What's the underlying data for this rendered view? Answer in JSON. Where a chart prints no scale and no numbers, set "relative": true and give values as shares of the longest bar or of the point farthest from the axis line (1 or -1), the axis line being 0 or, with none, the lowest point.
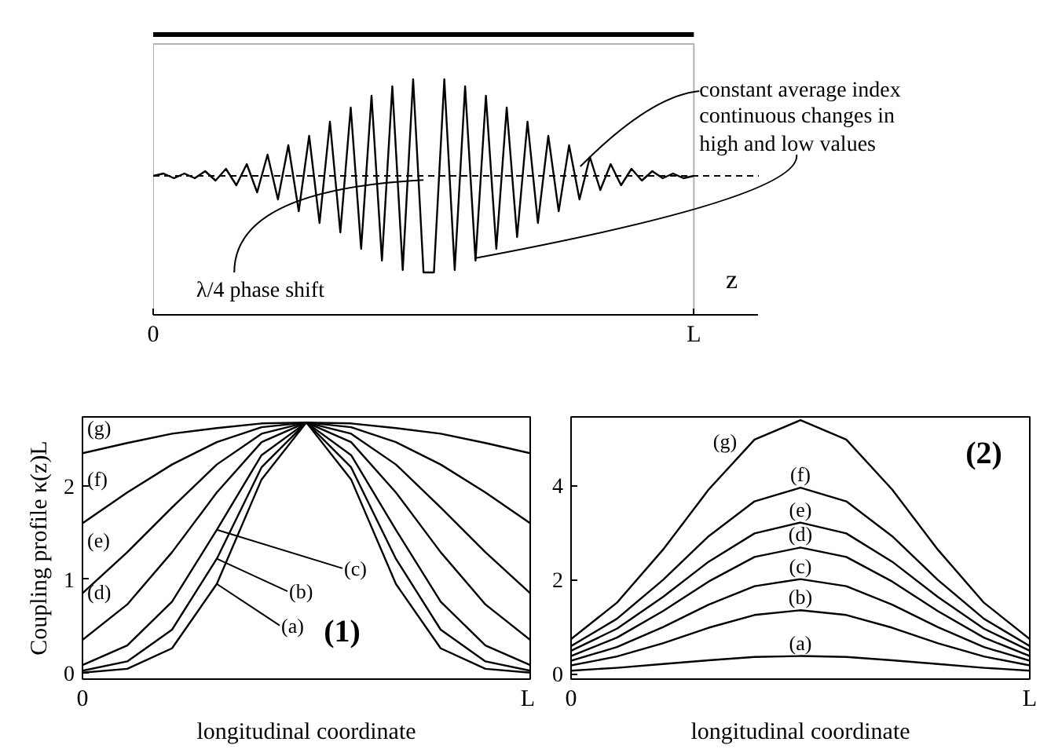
{
  "chart_data": [
    {
      "type": "line",
      "relative": true,
      "xlabel": "z",
      "tick_labels": "x",
      "categories": [
        "0",
        null,
        null,
        null,
        null,
        null,
        null,
        null,
        null,
        null,
        null,
        null,
        null,
        null,
        null,
        null,
        null,
        null,
        null,
        null,
        null,
        null,
        null,
        null,
        null,
        null,
        null,
        null,
        null,
        null,
        null,
        null,
        null,
        null,
        null,
        null,
        null,
        null,
        null,
        null,
        null,
        null,
        null,
        null,
        null,
        null,
        null,
        null,
        null,
        null,
        null,
        null,
        "L"
      ],
      "series": [
        {
          "color": "#000000",
          "values": [
            0.59,
            0.6,
            0.58,
            0.6,
            0.58,
            0.61,
            0.57,
            0.62,
            0.55,
            0.64,
            0.52,
            0.68,
            0.49,
            0.72,
            0.44,
            0.76,
            0.39,
            0.82,
            0.35,
            0.88,
            0.28,
            0.93,
            0.23,
            0.97,
            0.19,
            1.0,
            0.18,
            0.18,
            1.0,
            0.19,
            0.97,
            0.23,
            0.93,
            0.28,
            0.88,
            0.33,
            0.82,
            0.39,
            0.76,
            0.44,
            0.72,
            0.49,
            0.67,
            0.53,
            0.64,
            0.55,
            0.62,
            0.57,
            0.61,
            0.58,
            0.6,
            0.58,
            0.59
          ]
        }
      ],
      "ref_lines": [
        {
          "axis": "y",
          "value": 0.59,
          "line_style": "dashed",
          "color": "#000000"
        }
      ],
      "annotations": [
        "constant average index",
        "continuous changes in high and low values",
        "λ/4 phase shift"
      ]
    },
    {
      "type": "line",
      "xlabel": "longitudinal coordinate",
      "ylabel": "Coupling profile κ(z)L",
      "ylim": [
        -0.07,
        2.74
      ],
      "yticks": [
        0,
        1,
        2
      ],
      "legend": "left",
      "categories": [
        "0",
        null,
        null,
        null,
        null,
        null,
        null,
        null,
        null,
        null,
        "L"
      ],
      "series": [
        {
          "name": "(a)",
          "color": "#000000",
          "values": [
            0.0,
            0.04,
            0.26,
            0.95,
            2.07,
            2.68,
            2.07,
            0.95,
            0.26,
            0.04,
            0.0
          ]
        },
        {
          "name": "(b)",
          "color": "#000000",
          "values": [
            0.02,
            0.12,
            0.46,
            1.22,
            2.2,
            2.68,
            2.2,
            1.22,
            0.46,
            0.12,
            0.02
          ]
        },
        {
          "name": "(c)",
          "color": "#000000",
          "values": [
            0.08,
            0.29,
            0.76,
            1.53,
            2.33,
            2.68,
            2.33,
            1.53,
            0.76,
            0.29,
            0.08
          ]
        },
        {
          "name": "(d)",
          "color": "#000000",
          "values": [
            0.35,
            0.73,
            1.29,
            1.93,
            2.47,
            2.68,
            2.47,
            1.93,
            1.29,
            0.73,
            0.35
          ]
        },
        {
          "name": "(e)",
          "color": "#000000",
          "values": [
            0.85,
            1.29,
            1.77,
            2.23,
            2.56,
            2.68,
            2.56,
            2.23,
            1.77,
            1.29,
            0.85
          ]
        },
        {
          "name": "(f)",
          "color": "#000000",
          "values": [
            1.6,
            1.93,
            2.23,
            2.47,
            2.63,
            2.68,
            2.63,
            2.47,
            2.23,
            1.93,
            1.6
          ]
        },
        {
          "name": "(g)",
          "color": "#000000",
          "values": [
            2.35,
            2.46,
            2.56,
            2.62,
            2.67,
            2.68,
            2.67,
            2.62,
            2.56,
            2.46,
            2.35
          ]
        }
      ],
      "annotations": [
        "(1)"
      ]
    },
    {
      "type": "line",
      "xlabel": "longitudinal coordinate",
      "ylim": [
        -0.11,
        5.45
      ],
      "yticks": [
        0,
        2,
        4
      ],
      "categories": [
        "0",
        null,
        null,
        null,
        null,
        null,
        null,
        null,
        null,
        null,
        "L"
      ],
      "series": [
        {
          "name": "(a)",
          "color": "#000000",
          "values": [
            0.07,
            0.13,
            0.21,
            0.29,
            0.36,
            0.38,
            0.36,
            0.29,
            0.21,
            0.13,
            0.07
          ]
        },
        {
          "name": "(b)",
          "color": "#000000",
          "values": [
            0.18,
            0.37,
            0.65,
            0.98,
            1.25,
            1.35,
            1.25,
            0.98,
            0.65,
            0.37,
            0.18
          ]
        },
        {
          "name": "(c)",
          "color": "#000000",
          "values": [
            0.28,
            0.57,
            0.99,
            1.47,
            1.86,
            2.01,
            1.86,
            1.47,
            0.99,
            0.57,
            0.28
          ]
        },
        {
          "name": "(d)",
          "color": "#000000",
          "values": [
            0.38,
            0.77,
            1.33,
            1.96,
            2.48,
            2.68,
            2.48,
            1.96,
            1.33,
            0.77,
            0.38
          ]
        },
        {
          "name": "(e)",
          "color": "#000000",
          "values": [
            0.49,
            0.96,
            1.63,
            2.38,
            2.98,
            3.21,
            2.98,
            2.38,
            1.63,
            0.96,
            0.49
          ]
        },
        {
          "name": "(f)",
          "color": "#000000",
          "values": [
            0.59,
            1.17,
            1.99,
            2.92,
            3.66,
            3.95,
            3.66,
            2.92,
            1.99,
            1.17,
            0.59
          ]
        },
        {
          "name": "(g)",
          "color": "#000000",
          "values": [
            0.74,
            1.51,
            2.63,
            3.91,
            4.97,
            5.38,
            4.97,
            3.91,
            2.63,
            1.51,
            0.74
          ]
        }
      ],
      "annotations": [
        "(2)"
      ]
    }
  ]
}
